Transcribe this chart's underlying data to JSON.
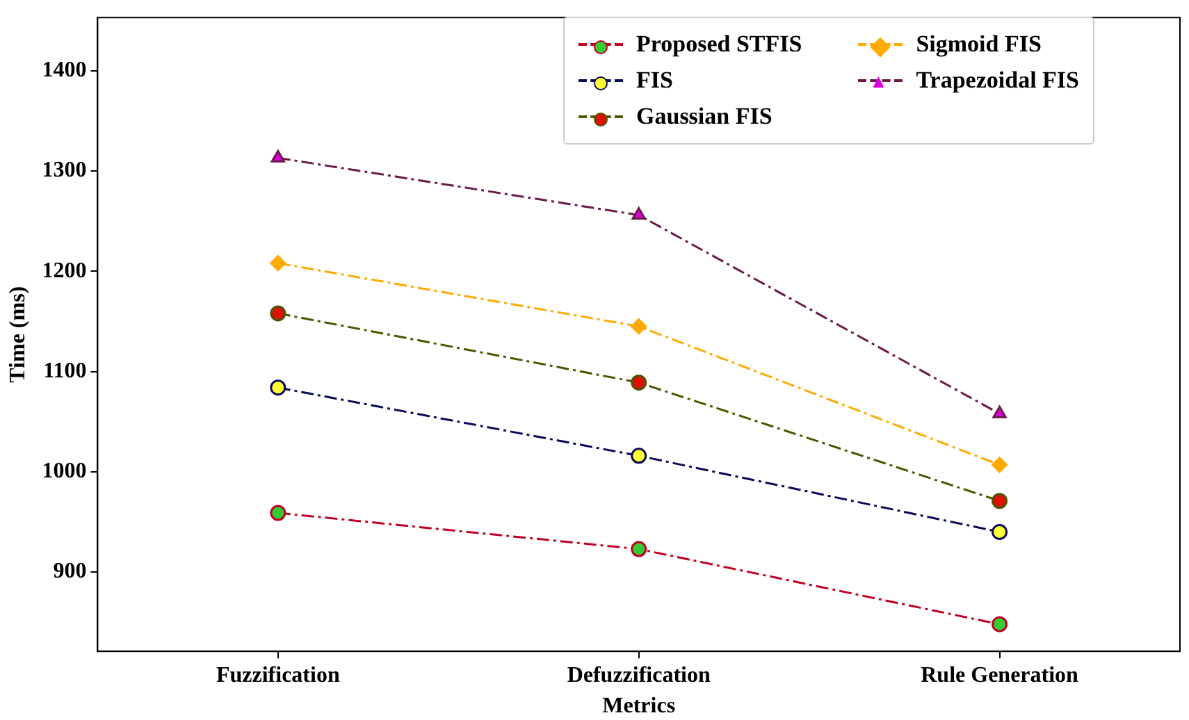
{
  "chart_data": {
    "type": "line",
    "xlabel": "Metrics",
    "ylabel": "Time (ms)",
    "categories": [
      "Fuzzification",
      "Defuzzification",
      "Rule Generation"
    ],
    "series": [
      {
        "name": "Proposed STFIS",
        "color": "#c00020",
        "colors": [
          "#33cc33",
          "#33cc33",
          "#33cc33"
        ],
        "marker": "circle",
        "values": [
          959,
          923,
          848
        ]
      },
      {
        "name": "FIS",
        "color": "#0a0a5a",
        "colors": [
          "#ffff33",
          "#ffff33",
          "#ffff33"
        ],
        "marker": "circle",
        "values": [
          1084,
          1016,
          940
        ]
      },
      {
        "name": "Gaussian FIS",
        "color": "#4d5500",
        "colors": [
          "#dd1100",
          "#dd1100",
          "#dd1100"
        ],
        "marker": "circle",
        "values": [
          1158,
          1089,
          971
        ]
      },
      {
        "name": "Sigmoid FIS",
        "color": "#ffaa00",
        "colors": [
          "#ffaa00",
          "#ffaa00",
          "#ffaa00"
        ],
        "marker": "diamond",
        "values": [
          1208,
          1145,
          1007
        ]
      },
      {
        "name": "Trapezoidal FIS",
        "color": "#6b1a4a",
        "colors": [
          "#dd00dd",
          "#dd00dd",
          "#dd00dd"
        ],
        "marker": "triangle",
        "values": [
          1313,
          1256,
          1058
        ]
      }
    ],
    "ylim": [
      821,
      1453
    ],
    "yticks": [
      900,
      1000,
      1100,
      1200,
      1300,
      1400
    ],
    "grid": false,
    "legend": "top right",
    "line_style": "dashed"
  }
}
